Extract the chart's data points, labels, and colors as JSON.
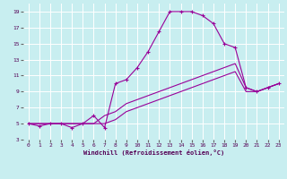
{
  "xlabel": "Windchill (Refroidissement éolien,°C)",
  "bg_color": "#c8eef0",
  "line_color": "#990099",
  "xlim": [
    -0.5,
    23.5
  ],
  "ylim": [
    3,
    20
  ],
  "xticks": [
    0,
    1,
    2,
    3,
    4,
    5,
    6,
    7,
    8,
    9,
    10,
    11,
    12,
    13,
    14,
    15,
    16,
    17,
    18,
    19,
    20,
    21,
    22,
    23
  ],
  "yticks": [
    3,
    5,
    7,
    9,
    11,
    13,
    15,
    17,
    19
  ],
  "series1_x": [
    0,
    1,
    2,
    3,
    4,
    5,
    6,
    7,
    8,
    9,
    10,
    11,
    12,
    13,
    14,
    15,
    16,
    17,
    18,
    19,
    20,
    21,
    22,
    23
  ],
  "series1_y": [
    5,
    4.7,
    5,
    5,
    4.5,
    5,
    6,
    4.5,
    10,
    10.5,
    12,
    14,
    16.5,
    19,
    19,
    19,
    18.5,
    17.5,
    15,
    14.5,
    9.5,
    9,
    9.5,
    10
  ],
  "series2_x": [
    0,
    1,
    2,
    3,
    4,
    5,
    6,
    7,
    8,
    9,
    10,
    11,
    12,
    13,
    14,
    15,
    16,
    17,
    18,
    19,
    20,
    21,
    22,
    23
  ],
  "series2_y": [
    5,
    5,
    5,
    5,
    5,
    5,
    5,
    6,
    6.5,
    7.5,
    8,
    8.5,
    9,
    9.5,
    10,
    10.5,
    11,
    11.5,
    12,
    12.5,
    9.5,
    9,
    9.5,
    10
  ],
  "series3_x": [
    0,
    1,
    2,
    3,
    4,
    5,
    6,
    7,
    8,
    9,
    10,
    11,
    12,
    13,
    14,
    15,
    16,
    17,
    18,
    19,
    20,
    21,
    22,
    23
  ],
  "series3_y": [
    5,
    5,
    5,
    5,
    5,
    5,
    5,
    5,
    5.5,
    6.5,
    7,
    7.5,
    8,
    8.5,
    9,
    9.5,
    10,
    10.5,
    11,
    11.5,
    9,
    9,
    9.5,
    10
  ]
}
